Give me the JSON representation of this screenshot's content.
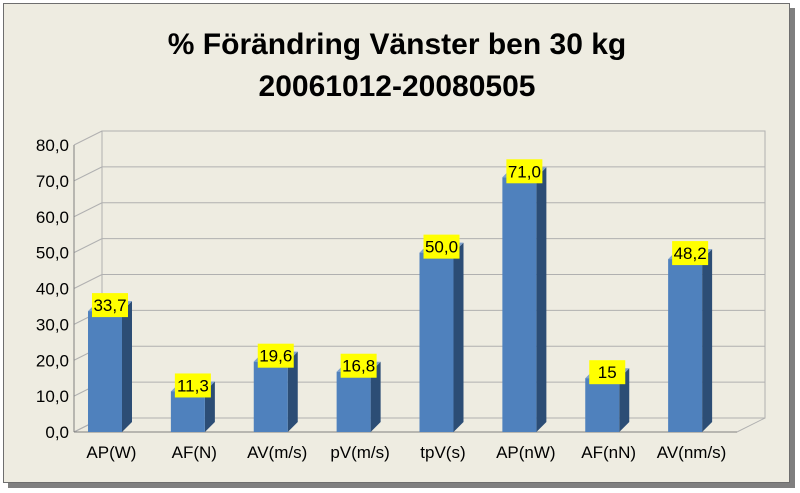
{
  "chart_data": {
    "type": "bar",
    "title": "% Förändring Vänster ben 30 kg",
    "subtitle": "20061012-20080505",
    "categories": [
      "AP(W)",
      "AF(N)",
      "AV(m/s)",
      "pV(m/s)",
      "tpV(s)",
      "AP(nW)",
      "AF(nN)",
      "AV(nm/s)"
    ],
    "values": [
      33.7,
      11.3,
      19.6,
      16.8,
      50.0,
      71.0,
      15,
      48.2
    ],
    "data_labels": [
      "33,7",
      "11,3",
      "19,6",
      "16,8",
      "50,0",
      "71,0",
      "15",
      "48,2"
    ],
    "y_tick_labels": [
      "0,0",
      "10,0",
      "20,0",
      "30,0",
      "40,0",
      "50,0",
      "60,0",
      "70,0",
      "80,0"
    ],
    "ylim": [
      0,
      80
    ],
    "grid": true,
    "legend": "none",
    "xlabel": "",
    "ylabel": "",
    "colors": {
      "bar_front": "#4f81bd",
      "bar_side": "#2c4d75",
      "bar_top": "#7ea1d0",
      "label_bg": "#ffff00",
      "background": "#eeece1",
      "grid": "#b0b0b0"
    }
  }
}
